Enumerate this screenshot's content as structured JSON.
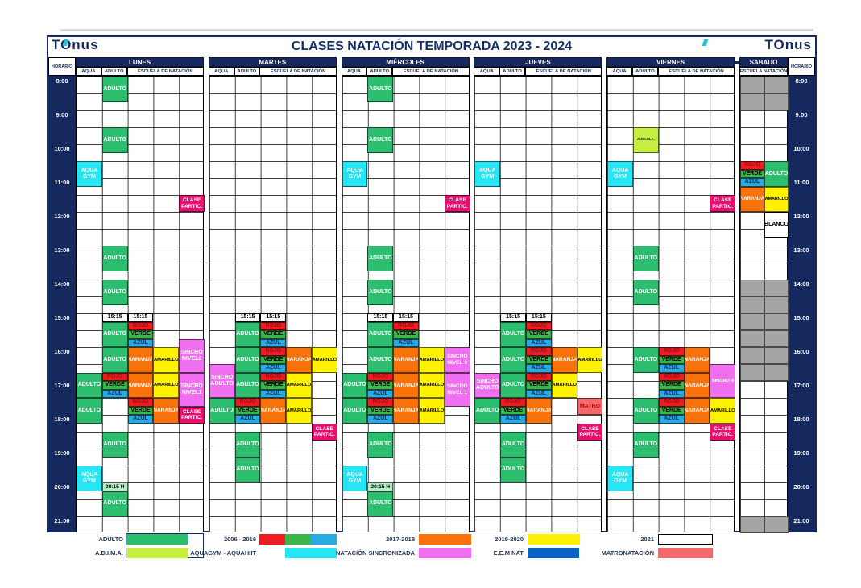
{
  "title": "CLASES NATACIÓN TEMPORADA 2023 - 2024",
  "logo": {
    "text": "TOnus"
  },
  "horario_label": "HORARIO",
  "times": [
    "8:00",
    "9:00",
    "10:00",
    "11:00",
    "12:00",
    "13:00",
    "14:00",
    "15:00",
    "16:00",
    "17:00",
    "18:00",
    "19:00",
    "20:00",
    "21:00"
  ],
  "days": [
    {
      "name": "LUNES",
      "subcols": [
        {
          "label": "AQUA",
          "span": 1
        },
        {
          "label": "ADULTO",
          "span": 1
        },
        {
          "label": "ESCUELA DE NATACIÓN",
          "span": 3
        }
      ]
    },
    {
      "name": "MARTES",
      "subcols": [
        {
          "label": "AQUA",
          "span": 1
        },
        {
          "label": "ADULTO",
          "span": 1
        },
        {
          "label": "ESCUELA DE NATACIÓN",
          "span": 3
        }
      ]
    },
    {
      "name": "MIÉRCOLES",
      "subcols": [
        {
          "label": "AQUA",
          "span": 1
        },
        {
          "label": "ADULTO",
          "span": 1
        },
        {
          "label": "ESCUELA DE NATACIÓN",
          "span": 3
        }
      ]
    },
    {
      "name": "JUEVES",
      "subcols": [
        {
          "label": "AQUA",
          "span": 1
        },
        {
          "label": "ADULTO",
          "span": 1
        },
        {
          "label": "ESCUELA DE NATACIÓN",
          "span": 3
        }
      ]
    },
    {
      "name": "VIERNES",
      "subcols": [
        {
          "label": "AQUA",
          "span": 1
        },
        {
          "label": "ADULTO",
          "span": 1
        },
        {
          "label": "ESCUELA DE NATACIÓN",
          "span": 3
        }
      ]
    },
    {
      "name": "SABADO",
      "subcols": [
        {
          "label": "ESCUELA NATACIÓN",
          "span": 2
        }
      ]
    }
  ],
  "colors": {
    "adulto": {
      "bg": "#2CBE6E",
      "fg": "#FFFFFF"
    },
    "verde": {
      "bg": "#3CB54A",
      "fg": "#000000"
    },
    "rojo": {
      "bg": "#EC1C24",
      "fg": "#9E0B0F"
    },
    "azul": {
      "bg": "#29ABE2",
      "fg": "#0D2D6B"
    },
    "naranja": {
      "bg": "#F8720C",
      "fg": "#FFFFFF"
    },
    "amarillo": {
      "bg": "#FFF200",
      "fg": "#000000"
    },
    "aquagym": {
      "bg": "#26E5F4",
      "fg": "#FFFFFF"
    },
    "sincro": {
      "bg": "#F06EF0",
      "fg": "#FFFFFF"
    },
    "partic": {
      "bg": "#EC0E6F",
      "fg": "#FFFFFF"
    },
    "adima": {
      "bg": "#C6EE3F",
      "fg": "#000000"
    },
    "matro": {
      "bg": "#F4696B",
      "fg": "#C00000"
    },
    "eem": {
      "bg": "#0B62C4",
      "fg": "#FFFFFF"
    },
    "h2015": {
      "bg": "#B5EDC6",
      "fg": "#000000"
    },
    "blanco": {
      "bg": "#FFFFFF",
      "fg": "#000000"
    },
    "gris": {
      "bg": "#A5A5A5",
      "fg": "#000000"
    },
    "slot": {
      "bg": "#FFFFFF",
      "fg": "#000000"
    },
    "navy": {
      "bg": "#16295E",
      "fg": "#FFFFFF"
    }
  },
  "event_fields": [
    "day",
    "col",
    "start",
    "end",
    "color",
    "label"
  ],
  "events": [
    [
      0,
      1,
      "8:00",
      "8:45",
      "adulto",
      "ADULTO"
    ],
    [
      0,
      1,
      "9:30",
      "10:15",
      "adulto",
      "ADULTO"
    ],
    [
      0,
      0,
      "10:30",
      "11:15",
      "aquagym",
      "AQUA\nGYM"
    ],
    [
      0,
      4,
      "11:30",
      "12:00",
      "partic",
      "CLASE\nPARTIC."
    ],
    [
      0,
      1,
      "13:00",
      "13:45",
      "adulto",
      "ADULTO"
    ],
    [
      0,
      1,
      "14:00",
      "14:45",
      "adulto",
      "ADULTO"
    ],
    [
      0,
      1,
      "15:00",
      "15:15",
      "slot",
      "15:15"
    ],
    [
      0,
      2,
      "15:00",
      "15:15",
      "slot",
      "15:15"
    ],
    [
      0,
      1,
      "15:15",
      "16:00",
      "adulto",
      "ADULTO"
    ],
    [
      0,
      2,
      "15:15",
      "15:30",
      "rojo",
      "ROJO"
    ],
    [
      0,
      2,
      "15:30",
      "15:45",
      "verde",
      "VERDE"
    ],
    [
      0,
      2,
      "15:45",
      "16:00",
      "azul",
      "AZUL"
    ],
    [
      0,
      1,
      "16:00",
      "16:45",
      "adulto",
      "ADULTO"
    ],
    [
      0,
      2,
      "16:00",
      "16:45",
      "naranja",
      "NARANJA"
    ],
    [
      0,
      3,
      "16:00",
      "16:45",
      "amarillo",
      "AMARILLO"
    ],
    [
      0,
      4,
      "15:45",
      "16:45",
      "sincro",
      "SINCRO\nNIVEL2"
    ],
    [
      0,
      0,
      "16:45",
      "17:30",
      "adulto",
      "ADULTO"
    ],
    [
      0,
      1,
      "16:45",
      "17:00",
      "rojo",
      "ROJO"
    ],
    [
      0,
      1,
      "17:00",
      "17:15",
      "verde",
      "VERDE"
    ],
    [
      0,
      1,
      "17:15",
      "17:30",
      "azul",
      "AZUL"
    ],
    [
      0,
      2,
      "16:45",
      "17:30",
      "naranja",
      "NARANJA"
    ],
    [
      0,
      3,
      "16:45",
      "17:30",
      "amarillo",
      "AMARILLO"
    ],
    [
      0,
      4,
      "16:45",
      "17:45",
      "sincro",
      "SINCRO\nNIVEL1"
    ],
    [
      0,
      0,
      "17:30",
      "18:15",
      "adulto",
      "ADULTO"
    ],
    [
      0,
      2,
      "17:30",
      "17:45",
      "rojo",
      "ROJO"
    ],
    [
      0,
      2,
      "17:45",
      "18:00",
      "verde",
      "VERDE"
    ],
    [
      0,
      2,
      "18:00",
      "18:15",
      "azul",
      "AZUL"
    ],
    [
      0,
      3,
      "17:30",
      "18:15",
      "naranja",
      "NARANJA"
    ],
    [
      0,
      4,
      "17:45",
      "18:15",
      "partic",
      "CLASE\nPARTIC."
    ],
    [
      0,
      1,
      "18:30",
      "19:15",
      "adulto",
      "ADULTO"
    ],
    [
      0,
      0,
      "19:30",
      "20:15",
      "aquagym",
      "AQUA\nGYM"
    ],
    [
      0,
      1,
      "20:00",
      "20:15",
      "h2015",
      "20:15 H"
    ],
    [
      0,
      1,
      "20:15",
      "21:00",
      "adulto",
      "ADULTO"
    ],
    [
      1,
      1,
      "15:00",
      "15:15",
      "slot",
      "15:15"
    ],
    [
      1,
      2,
      "15:00",
      "15:15",
      "slot",
      "15:15"
    ],
    [
      1,
      1,
      "15:15",
      "16:00",
      "adulto",
      "ADULTO"
    ],
    [
      1,
      2,
      "15:15",
      "15:30",
      "rojo",
      "ROJO"
    ],
    [
      1,
      2,
      "15:30",
      "15:45",
      "verde",
      "VERDE"
    ],
    [
      1,
      2,
      "15:45",
      "16:00",
      "azul",
      "AZUL"
    ],
    [
      1,
      1,
      "16:00",
      "16:45",
      "adulto",
      "ADULTO"
    ],
    [
      1,
      2,
      "16:00",
      "16:15",
      "rojo",
      "ROJO"
    ],
    [
      1,
      2,
      "16:15",
      "16:30",
      "verde",
      "VERDE"
    ],
    [
      1,
      2,
      "16:30",
      "16:45",
      "azul",
      "AZUL"
    ],
    [
      1,
      3,
      "16:00",
      "16:45",
      "naranja",
      "NARANJA"
    ],
    [
      1,
      4,
      "16:00",
      "16:45",
      "amarillo",
      "AMARILLO"
    ],
    [
      1,
      0,
      "16:30",
      "17:30",
      "sincro",
      "SINCRO\nADULTO"
    ],
    [
      1,
      1,
      "16:45",
      "17:30",
      "adulto",
      "ADULTO"
    ],
    [
      1,
      2,
      "16:45",
      "17:00",
      "rojo",
      "ROJO"
    ],
    [
      1,
      2,
      "17:00",
      "17:15",
      "verde",
      "VERDE"
    ],
    [
      1,
      2,
      "17:15",
      "17:30",
      "azul",
      "AZUL"
    ],
    [
      1,
      3,
      "16:45",
      "17:30",
      "amarillo",
      "AMARILLO"
    ],
    [
      1,
      0,
      "17:30",
      "18:15",
      "adulto",
      "ADULTO"
    ],
    [
      1,
      1,
      "17:30",
      "17:45",
      "rojo",
      "ROJO"
    ],
    [
      1,
      1,
      "17:45",
      "18:00",
      "verde",
      "VERDE"
    ],
    [
      1,
      1,
      "18:00",
      "18:15",
      "azul",
      "AZUL"
    ],
    [
      1,
      2,
      "17:30",
      "18:15",
      "naranja",
      "NARANJA"
    ],
    [
      1,
      3,
      "17:30",
      "18:15",
      "amarillo",
      "AMARILLO"
    ],
    [
      1,
      4,
      "18:15",
      "18:45",
      "partic",
      "CLASE\nPARTIC."
    ],
    [
      1,
      1,
      "18:30",
      "19:15",
      "adulto",
      "ADULTO"
    ],
    [
      1,
      1,
      "19:15",
      "20:00",
      "adulto",
      "ADULTO"
    ],
    [
      2,
      1,
      "8:00",
      "8:45",
      "adulto",
      "ADULTO"
    ],
    [
      2,
      1,
      "9:30",
      "10:15",
      "adulto",
      "ADULTO"
    ],
    [
      2,
      0,
      "10:30",
      "11:15",
      "aquagym",
      "AQUA\nGYM"
    ],
    [
      2,
      4,
      "11:30",
      "12:00",
      "partic",
      "CLASE\nPARTIC."
    ],
    [
      2,
      1,
      "13:00",
      "13:45",
      "adulto",
      "ADULTO"
    ],
    [
      2,
      1,
      "14:00",
      "14:45",
      "adulto",
      "ADULTO"
    ],
    [
      2,
      1,
      "15:00",
      "15:15",
      "slot",
      "15:15"
    ],
    [
      2,
      2,
      "15:00",
      "15:15",
      "slot",
      "15:15"
    ],
    [
      2,
      1,
      "15:15",
      "16:00",
      "adulto",
      "ADULTO"
    ],
    [
      2,
      2,
      "15:15",
      "15:30",
      "rojo",
      "ROJO"
    ],
    [
      2,
      2,
      "15:30",
      "15:45",
      "verde",
      "VERDE"
    ],
    [
      2,
      2,
      "15:45",
      "16:00",
      "azul",
      "AZUL"
    ],
    [
      2,
      1,
      "16:00",
      "16:45",
      "adulto",
      "ADULTO"
    ],
    [
      2,
      2,
      "16:00",
      "16:45",
      "naranja",
      "NARANJA"
    ],
    [
      2,
      3,
      "16:00",
      "16:45",
      "amarillo",
      "AMARILLO"
    ],
    [
      2,
      4,
      "16:00",
      "16:45",
      "sincro",
      "SINCRO\nNIVEL 3"
    ],
    [
      2,
      0,
      "16:45",
      "17:30",
      "adulto",
      "ADULTO"
    ],
    [
      2,
      1,
      "16:45",
      "17:00",
      "rojo",
      "ROJO"
    ],
    [
      2,
      1,
      "17:00",
      "17:15",
      "verde",
      "VERDE"
    ],
    [
      2,
      1,
      "17:15",
      "17:30",
      "azul",
      "AZUL"
    ],
    [
      2,
      2,
      "16:45",
      "17:30",
      "naranja",
      "NARANJA"
    ],
    [
      2,
      3,
      "16:45",
      "17:30",
      "amarillo",
      "AMARILLO"
    ],
    [
      2,
      4,
      "16:45",
      "17:45",
      "sincro",
      "SINCRO\nNIVEL 1"
    ],
    [
      2,
      0,
      "17:30",
      "18:15",
      "adulto",
      "ADULTO"
    ],
    [
      2,
      1,
      "17:30",
      "17:45",
      "rojo",
      "ROJO"
    ],
    [
      2,
      1,
      "17:45",
      "18:00",
      "verde",
      "VERDE"
    ],
    [
      2,
      1,
      "18:00",
      "18:15",
      "azul",
      "AZUL"
    ],
    [
      2,
      2,
      "17:30",
      "18:15",
      "naranja",
      "NARANJA"
    ],
    [
      2,
      3,
      "17:30",
      "18:15",
      "amarillo",
      "AMARILLO"
    ],
    [
      2,
      1,
      "18:30",
      "19:15",
      "adulto",
      "ADULTO"
    ],
    [
      2,
      0,
      "19:30",
      "20:15",
      "aquagym",
      "AQUA\nGYM"
    ],
    [
      2,
      1,
      "20:00",
      "20:15",
      "h2015",
      "20:15 H"
    ],
    [
      2,
      1,
      "20:15",
      "21:00",
      "adulto",
      "ADULTO"
    ],
    [
      3,
      0,
      "10:30",
      "11:15",
      "aquagym",
      "AQUA\nGYM"
    ],
    [
      3,
      1,
      "15:00",
      "15:15",
      "slot",
      "15:15"
    ],
    [
      3,
      2,
      "15:00",
      "15:15",
      "slot",
      "15:15"
    ],
    [
      3,
      1,
      "15:15",
      "16:00",
      "adulto",
      "ADULTO"
    ],
    [
      3,
      2,
      "15:15",
      "15:30",
      "rojo",
      "ROJO"
    ],
    [
      3,
      2,
      "15:30",
      "15:45",
      "verde",
      "VERDE"
    ],
    [
      3,
      2,
      "15:45",
      "16:00",
      "azul",
      "AZUL"
    ],
    [
      3,
      1,
      "16:00",
      "16:45",
      "adulto",
      "ADULTO"
    ],
    [
      3,
      2,
      "16:00",
      "16:15",
      "rojo",
      "ROJO"
    ],
    [
      3,
      2,
      "16:15",
      "16:30",
      "verde",
      "VERDE"
    ],
    [
      3,
      2,
      "16:30",
      "16:45",
      "azul",
      "AZUL"
    ],
    [
      3,
      3,
      "16:00",
      "16:45",
      "naranja",
      "NARANJA"
    ],
    [
      3,
      4,
      "16:00",
      "16:45",
      "amarillo",
      "AMARILLO"
    ],
    [
      3,
      0,
      "16:45",
      "17:30",
      "sincro",
      "SINCRO\nADULTO"
    ],
    [
      3,
      1,
      "16:45",
      "17:30",
      "adulto",
      "ADULTO"
    ],
    [
      3,
      2,
      "16:45",
      "17:00",
      "rojo",
      "ROJO"
    ],
    [
      3,
      2,
      "17:00",
      "17:15",
      "verde",
      "VERDE"
    ],
    [
      3,
      2,
      "17:15",
      "17:30",
      "azul",
      "AZUL"
    ],
    [
      3,
      3,
      "16:45",
      "17:30",
      "amarillo",
      "AMARILLO"
    ],
    [
      3,
      0,
      "17:30",
      "18:15",
      "adulto",
      "ADULTO"
    ],
    [
      3,
      1,
      "17:30",
      "17:45",
      "rojo",
      "ROJO"
    ],
    [
      3,
      1,
      "17:45",
      "18:00",
      "verde",
      "VERDE"
    ],
    [
      3,
      1,
      "18:00",
      "18:15",
      "azul",
      "AZUL"
    ],
    [
      3,
      2,
      "17:30",
      "18:15",
      "naranja",
      "NARANJA"
    ],
    [
      3,
      4,
      "17:30",
      "18:00",
      "matro",
      "MATRO"
    ],
    [
      3,
      4,
      "18:15",
      "18:45",
      "partic",
      "CLASE\nPARTIC."
    ],
    [
      3,
      1,
      "18:30",
      "19:15",
      "adulto",
      "ADULTO"
    ],
    [
      3,
      1,
      "19:15",
      "20:00",
      "adulto",
      "ADULTO"
    ],
    [
      4,
      1,
      "9:30",
      "10:15",
      "adima",
      "A.D.I.M.A."
    ],
    [
      4,
      0,
      "10:30",
      "11:15",
      "aquagym",
      "AQUA\nGYM"
    ],
    [
      4,
      4,
      "11:30",
      "12:00",
      "partic",
      "CLASE\nPARTIC."
    ],
    [
      4,
      1,
      "13:00",
      "13:45",
      "adulto",
      "ADULTO"
    ],
    [
      4,
      1,
      "14:00",
      "14:45",
      "adulto",
      "ADULTO"
    ],
    [
      4,
      1,
      "16:00",
      "16:45",
      "adulto",
      "ADULTO"
    ],
    [
      4,
      2,
      "16:00",
      "16:15",
      "rojo",
      "ROJO"
    ],
    [
      4,
      2,
      "16:15",
      "16:30",
      "verde",
      "VERDE"
    ],
    [
      4,
      2,
      "16:30",
      "16:45",
      "azul",
      "AZUL"
    ],
    [
      4,
      3,
      "16:00",
      "16:45",
      "naranja",
      "NARANJA"
    ],
    [
      4,
      2,
      "16:45",
      "17:00",
      "rojo",
      "ROJO"
    ],
    [
      4,
      2,
      "17:00",
      "17:15",
      "verde",
      "VERDE"
    ],
    [
      4,
      2,
      "17:15",
      "17:30",
      "azul",
      "AZUL"
    ],
    [
      4,
      3,
      "16:45",
      "17:30",
      "naranja",
      "NARANJA"
    ],
    [
      4,
      4,
      "16:30",
      "17:30",
      "sincro",
      "SINCRO 4"
    ],
    [
      4,
      1,
      "17:30",
      "18:15",
      "adulto",
      "ADULTO"
    ],
    [
      4,
      2,
      "17:30",
      "17:45",
      "rojo",
      "ROJO"
    ],
    [
      4,
      2,
      "17:45",
      "18:00",
      "verde",
      "VERDE"
    ],
    [
      4,
      2,
      "18:00",
      "18:15",
      "azul",
      "AZUL"
    ],
    [
      4,
      3,
      "17:30",
      "18:15",
      "naranja",
      "NARANJA"
    ],
    [
      4,
      4,
      "17:30",
      "18:15",
      "amarillo",
      "AMARILLO"
    ],
    [
      4,
      4,
      "18:15",
      "18:45",
      "partic",
      "CLASE\nPARTIC."
    ],
    [
      4,
      1,
      "18:30",
      "19:15",
      "adulto",
      "ADULTO"
    ],
    [
      4,
      0,
      "19:30",
      "20:15",
      "aquagym",
      "AQUA\nGYM"
    ],
    [
      5,
      0,
      "8:00",
      "8:30",
      "gris",
      ""
    ],
    [
      5,
      0,
      "8:30",
      "9:00",
      "gris",
      ""
    ],
    [
      5,
      1,
      "8:00",
      "8:30",
      "gris",
      ""
    ],
    [
      5,
      1,
      "8:30",
      "9:00",
      "gris",
      ""
    ],
    [
      5,
      0,
      "10:30",
      "10:45",
      "rojo",
      "ROJO"
    ],
    [
      5,
      0,
      "10:45",
      "11:00",
      "verde",
      "VERDE"
    ],
    [
      5,
      0,
      "11:00",
      "11:15",
      "azul",
      "AZUL"
    ],
    [
      5,
      1,
      "10:30",
      "11:15",
      "adulto",
      "ADULTO"
    ],
    [
      5,
      0,
      "11:15",
      "12:00",
      "naranja",
      "NARANJA"
    ],
    [
      5,
      1,
      "11:15",
      "12:00",
      "amarillo",
      "AMARILLO"
    ],
    [
      5,
      1,
      "12:00",
      "12:45",
      "blanco",
      "BLANCO"
    ],
    [
      5,
      0,
      "14:00",
      "14:30",
      "gris",
      ""
    ],
    [
      5,
      0,
      "14:30",
      "15:00",
      "gris",
      ""
    ],
    [
      5,
      0,
      "15:00",
      "15:30",
      "gris",
      ""
    ],
    [
      5,
      0,
      "15:30",
      "16:00",
      "gris",
      ""
    ],
    [
      5,
      0,
      "16:00",
      "16:30",
      "gris",
      ""
    ],
    [
      5,
      0,
      "16:30",
      "17:00",
      "gris",
      ""
    ],
    [
      5,
      1,
      "14:00",
      "14:30",
      "gris",
      ""
    ],
    [
      5,
      1,
      "14:30",
      "15:00",
      "gris",
      ""
    ],
    [
      5,
      1,
      "15:00",
      "15:30",
      "gris",
      ""
    ],
    [
      5,
      1,
      "15:30",
      "16:00",
      "gris",
      ""
    ],
    [
      5,
      1,
      "16:00",
      "16:30",
      "gris",
      ""
    ],
    [
      5,
      1,
      "16:30",
      "17:00",
      "gris",
      ""
    ],
    [
      5,
      0,
      "21:00",
      "21:30",
      "gris",
      ""
    ],
    [
      5,
      1,
      "21:00",
      "21:30",
      "gris",
      ""
    ]
  ],
  "legend": {
    "rows": [
      [
        {
          "label": "ADULTO",
          "swatches": [
            "adulto"
          ]
        },
        {
          "label": "2006 - 2016",
          "swatches": [
            "rojo",
            "verde",
            "azul"
          ]
        },
        {
          "label": "2017-2018",
          "swatches": [
            "naranja"
          ]
        },
        {
          "label": "2019-2020",
          "swatches": [
            "amarillo"
          ]
        },
        {
          "label": "2021",
          "swatches": [
            "blanco"
          ]
        }
      ],
      [
        {
          "label": "A.D.I.M.A.",
          "swatches": [
            "adima"
          ]
        },
        {
          "label": "AQUAGYM - AQUAHIIT",
          "swatches": [
            "aquagym"
          ]
        },
        {
          "label": "NATACIÓN SINCRONIZADA",
          "swatches": [
            "sincro"
          ]
        },
        {
          "label": "E.E.M NAT",
          "swatches": [
            "eem"
          ]
        },
        {
          "label": "MATRONATACIÓN",
          "swatches": [
            "matro"
          ]
        }
      ]
    ]
  }
}
